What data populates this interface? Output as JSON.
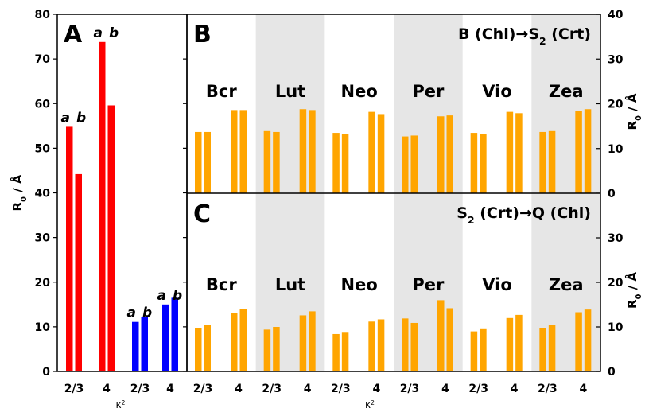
{
  "chart_data": [
    {
      "panel": "A",
      "type": "bar",
      "categories": [
        "2/3",
        "4",
        "2/3",
        "4"
      ],
      "series": [
        {
          "color": "#ff0000",
          "label_a": "a",
          "label_b": "b",
          "values_a": [
            54.8,
            73.8
          ],
          "values_b": [
            44.2,
            59.6
          ]
        },
        {
          "color": "#0000ff",
          "label_a": "a",
          "label_b": "b",
          "values_a": [
            11.1,
            15.0
          ],
          "values_b": [
            12.2,
            16.5
          ]
        }
      ],
      "ylabel": "R0 / Å",
      "ylim": [
        0,
        80
      ],
      "yticks": [
        "0",
        "10",
        "20",
        "30",
        "40",
        "50",
        "60",
        "70",
        "80"
      ],
      "xlabel": "κ2"
    },
    {
      "panel": "B",
      "type": "bar",
      "title": "B (Chl)→S2 (Crt)",
      "species": [
        "Bcr",
        "Lut",
        "Neo",
        "Per",
        "Vio",
        "Zea"
      ],
      "shaded": [
        false,
        true,
        false,
        true,
        false,
        true
      ],
      "categories": [
        "2/3",
        "4"
      ],
      "color": "#ffa500",
      "values": [
        [
          [
            13.7,
            13.7
          ],
          [
            18.6,
            18.6
          ]
        ],
        [
          [
            13.9,
            13.7
          ],
          [
            18.8,
            18.6
          ]
        ],
        [
          [
            13.5,
            13.2
          ],
          [
            18.2,
            17.7
          ]
        ],
        [
          [
            12.7,
            12.9
          ],
          [
            17.2,
            17.4
          ]
        ],
        [
          [
            13.5,
            13.3
          ],
          [
            18.2,
            17.9
          ]
        ],
        [
          [
            13.7,
            13.9
          ],
          [
            18.4,
            18.8
          ]
        ]
      ],
      "ylabel": "R0 / Å",
      "ylim": [
        0,
        40
      ],
      "yticks": [
        "0",
        "10",
        "20",
        "30",
        "40"
      ]
    },
    {
      "panel": "C",
      "type": "bar",
      "title": "S2 (Crt)→Q (Chl)",
      "species": [
        "Bcr",
        "Lut",
        "Neo",
        "Per",
        "Vio",
        "Zea"
      ],
      "shaded": [
        false,
        true,
        false,
        true,
        false,
        true
      ],
      "categories": [
        "2/3",
        "4"
      ],
      "color": "#ffa500",
      "values": [
        [
          [
            9.8,
            10.5
          ],
          [
            13.2,
            14.1
          ]
        ],
        [
          [
            9.4,
            10.0
          ],
          [
            12.6,
            13.5
          ]
        ],
        [
          [
            8.4,
            8.7
          ],
          [
            11.2,
            11.7
          ]
        ],
        [
          [
            11.9,
            10.9
          ],
          [
            16.0,
            14.2
          ]
        ],
        [
          [
            9.0,
            9.5
          ],
          [
            12.0,
            12.7
          ]
        ],
        [
          [
            9.8,
            10.4
          ],
          [
            13.3,
            13.9
          ]
        ]
      ],
      "ylabel": "R0 / Å",
      "ylim": [
        0,
        40
      ],
      "yticks": [
        "0",
        "10",
        "20",
        "30"
      ],
      "xlabel": "κ2"
    }
  ]
}
